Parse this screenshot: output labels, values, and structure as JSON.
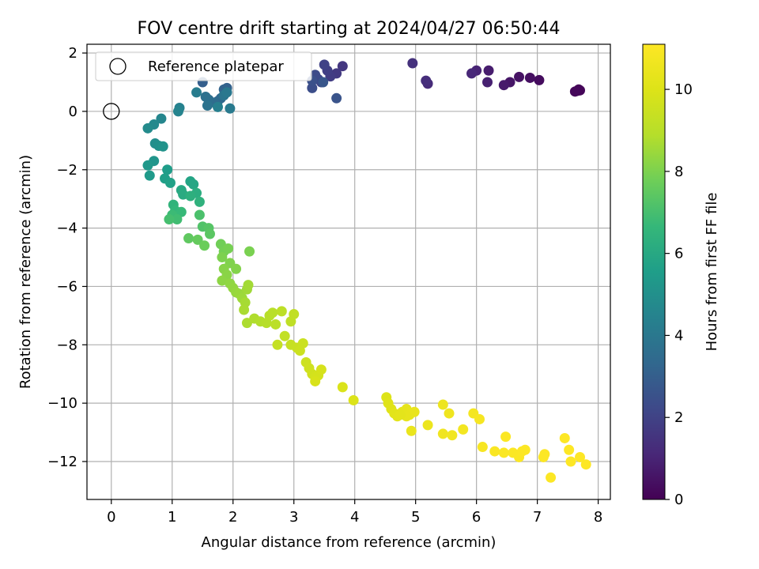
{
  "chart_data": {
    "type": "scatter",
    "title": "FOV centre drift starting at 2024/04/27 06:50:44",
    "xlabel": "Angular distance from reference (arcmin)",
    "ylabel": "Rotation from reference (arcmin)",
    "xlim": [
      -0.4,
      8.2
    ],
    "ylim": [
      -13.3,
      2.3
    ],
    "xticks": [
      0,
      1,
      2,
      3,
      4,
      5,
      6,
      7,
      8
    ],
    "yticks": [
      -12,
      -10,
      -8,
      -6,
      -4,
      -2,
      0,
      2
    ],
    "grid": true,
    "legend": {
      "position": "top-left",
      "entries": [
        "Reference platepar"
      ]
    },
    "reference_point": {
      "x": 0,
      "y": 0
    },
    "colorbar": {
      "label": "Hours from first FF file",
      "range": [
        0,
        11.1
      ],
      "ticks": [
        0,
        2,
        4,
        6,
        8,
        10
      ],
      "colormap": "viridis"
    },
    "points": [
      [
        7.65,
        0.7,
        0.05
      ],
      [
        7.68,
        0.75,
        0.1
      ],
      [
        7.7,
        0.72,
        0.15
      ],
      [
        7.62,
        0.68,
        0.2
      ],
      [
        7.03,
        1.07,
        0.3
      ],
      [
        6.88,
        1.15,
        0.4
      ],
      [
        6.7,
        1.18,
        0.5
      ],
      [
        6.55,
        1.0,
        0.6
      ],
      [
        6.45,
        0.9,
        0.7
      ],
      [
        6.2,
        1.4,
        0.8
      ],
      [
        6.18,
        1.0,
        0.9
      ],
      [
        6.0,
        1.4,
        1.0
      ],
      [
        5.92,
        1.3,
        1.1
      ],
      [
        5.2,
        0.95,
        1.2
      ],
      [
        5.17,
        1.05,
        1.3
      ],
      [
        4.95,
        1.65,
        1.4
      ],
      [
        3.8,
        1.55,
        1.6
      ],
      [
        3.7,
        1.3,
        1.7
      ],
      [
        3.6,
        1.2,
        1.8
      ],
      [
        3.55,
        1.4,
        1.9
      ],
      [
        3.5,
        1.6,
        2.0
      ],
      [
        3.45,
        1.0,
        2.1
      ],
      [
        3.4,
        1.1,
        2.2
      ],
      [
        3.35,
        1.25,
        2.3
      ],
      [
        3.3,
        0.8,
        2.4
      ],
      [
        3.3,
        1.05,
        2.5
      ],
      [
        3.7,
        0.45,
        2.6
      ],
      [
        3.48,
        1.0,
        2.7
      ],
      [
        1.5,
        1.0,
        3.0
      ],
      [
        1.9,
        0.8,
        3.1
      ],
      [
        1.85,
        0.75,
        3.2
      ],
      [
        1.8,
        0.45,
        3.3
      ],
      [
        1.75,
        0.35,
        3.4
      ],
      [
        1.7,
        0.3,
        3.5
      ],
      [
        1.6,
        0.4,
        3.6
      ],
      [
        1.55,
        0.5,
        3.7
      ],
      [
        1.58,
        0.2,
        3.8
      ],
      [
        1.85,
        0.55,
        3.9
      ],
      [
        1.9,
        0.65,
        4.0
      ],
      [
        1.95,
        0.1,
        4.1
      ],
      [
        1.4,
        0.65,
        4.2
      ],
      [
        1.75,
        0.15,
        4.3
      ],
      [
        1.12,
        0.12,
        4.4
      ],
      [
        1.1,
        0.0,
        4.5
      ],
      [
        0.82,
        -0.25,
        4.6
      ],
      [
        0.7,
        -0.45,
        4.7
      ],
      [
        0.6,
        -0.58,
        4.8
      ],
      [
        0.72,
        -1.1,
        4.9
      ],
      [
        0.78,
        -1.18,
        5.0
      ],
      [
        0.85,
        -1.2,
        5.1
      ],
      [
        0.7,
        -1.7,
        5.2
      ],
      [
        0.6,
        -1.85,
        5.3
      ],
      [
        0.63,
        -2.2,
        5.4
      ],
      [
        0.92,
        -2.0,
        5.5
      ],
      [
        0.88,
        -2.3,
        5.6
      ],
      [
        0.97,
        -2.45,
        5.7
      ],
      [
        1.3,
        -2.4,
        5.8
      ],
      [
        1.35,
        -2.5,
        5.9
      ],
      [
        1.15,
        -2.7,
        6.0
      ],
      [
        1.18,
        -2.85,
        6.1
      ],
      [
        1.4,
        -2.8,
        6.2
      ],
      [
        1.3,
        -2.9,
        6.3
      ],
      [
        1.45,
        -3.1,
        6.4
      ],
      [
        1.02,
        -3.2,
        6.5
      ],
      [
        1.05,
        -3.4,
        6.6
      ],
      [
        1.15,
        -3.45,
        6.7
      ],
      [
        1.0,
        -3.55,
        6.8
      ],
      [
        1.08,
        -3.7,
        6.9
      ],
      [
        0.95,
        -3.7,
        7.0
      ],
      [
        1.45,
        -3.55,
        7.1
      ],
      [
        1.5,
        -3.95,
        7.2
      ],
      [
        1.6,
        -4.0,
        7.3
      ],
      [
        1.62,
        -4.2,
        7.4
      ],
      [
        1.27,
        -4.35,
        7.5
      ],
      [
        1.42,
        -4.4,
        7.6
      ],
      [
        1.53,
        -4.6,
        7.7
      ],
      [
        1.8,
        -4.55,
        7.8
      ],
      [
        1.85,
        -4.8,
        7.85
      ],
      [
        1.92,
        -4.7,
        7.9
      ],
      [
        2.27,
        -4.8,
        7.95
      ],
      [
        1.82,
        -5.0,
        8.0
      ],
      [
        1.95,
        -5.2,
        8.05
      ],
      [
        2.05,
        -5.4,
        8.1
      ],
      [
        1.85,
        -5.4,
        8.15
      ],
      [
        1.9,
        -5.6,
        8.2
      ],
      [
        1.82,
        -5.8,
        8.25
      ],
      [
        1.95,
        -5.9,
        8.3
      ],
      [
        2.0,
        -6.05,
        8.35
      ],
      [
        2.05,
        -6.2,
        8.4
      ],
      [
        2.1,
        -6.25,
        8.45
      ],
      [
        2.15,
        -6.4,
        8.5
      ],
      [
        2.23,
        -6.1,
        8.55
      ],
      [
        2.25,
        -5.95,
        8.6
      ],
      [
        2.2,
        -6.55,
        8.65
      ],
      [
        2.18,
        -6.8,
        8.7
      ],
      [
        2.23,
        -7.25,
        8.75
      ],
      [
        2.35,
        -7.1,
        8.8
      ],
      [
        2.45,
        -7.2,
        8.85
      ],
      [
        2.55,
        -7.25,
        8.9
      ],
      [
        2.6,
        -7.0,
        8.95
      ],
      [
        2.65,
        -6.9,
        9.0
      ],
      [
        2.7,
        -7.3,
        9.05
      ],
      [
        2.8,
        -6.85,
        9.1
      ],
      [
        2.95,
        -7.2,
        9.15
      ],
      [
        3.0,
        -6.95,
        9.2
      ],
      [
        2.85,
        -7.7,
        9.25
      ],
      [
        2.73,
        -8.0,
        9.3
      ],
      [
        2.95,
        -8.0,
        9.35
      ],
      [
        3.05,
        -8.1,
        9.4
      ],
      [
        3.15,
        -7.95,
        9.45
      ],
      [
        3.1,
        -8.2,
        9.5
      ],
      [
        3.2,
        -8.6,
        9.55
      ],
      [
        3.25,
        -8.8,
        9.6
      ],
      [
        3.3,
        -9.0,
        9.65
      ],
      [
        3.35,
        -9.1,
        9.7
      ],
      [
        3.4,
        -9.05,
        9.75
      ],
      [
        3.45,
        -8.85,
        9.8
      ],
      [
        3.35,
        -9.25,
        9.85
      ],
      [
        3.8,
        -9.45,
        9.9
      ],
      [
        3.98,
        -9.9,
        9.95
      ],
      [
        4.52,
        -9.8,
        10.0
      ],
      [
        4.55,
        -10.0,
        10.05
      ],
      [
        4.6,
        -10.2,
        10.1
      ],
      [
        4.65,
        -10.35,
        10.15
      ],
      [
        4.7,
        -10.45,
        10.2
      ],
      [
        4.78,
        -10.3,
        10.25
      ],
      [
        4.85,
        -10.2,
        10.3
      ],
      [
        4.9,
        -10.4,
        10.35
      ],
      [
        4.98,
        -10.3,
        10.4
      ],
      [
        4.93,
        -10.95,
        10.45
      ],
      [
        5.2,
        -10.75,
        10.5
      ],
      [
        5.45,
        -10.05,
        10.55
      ],
      [
        5.55,
        -10.35,
        10.6
      ],
      [
        5.45,
        -11.05,
        10.65
      ],
      [
        5.6,
        -11.1,
        10.7
      ],
      [
        5.78,
        -10.9,
        10.75
      ],
      [
        5.95,
        -10.35,
        10.8
      ],
      [
        6.05,
        -10.55,
        10.85
      ],
      [
        6.1,
        -11.5,
        10.9
      ],
      [
        6.3,
        -11.65,
        10.95
      ],
      [
        6.45,
        -11.7,
        11.0
      ],
      [
        6.48,
        -11.15,
        11.02
      ],
      [
        6.7,
        -11.85,
        11.04
      ],
      [
        6.8,
        -11.6,
        11.06
      ],
      [
        7.12,
        -11.75,
        11.07
      ],
      [
        7.22,
        -12.55,
        11.08
      ],
      [
        7.45,
        -11.2,
        11.09
      ],
      [
        7.52,
        -11.6,
        11.1
      ],
      [
        7.7,
        -11.85,
        11.1
      ],
      [
        7.8,
        -12.1,
        11.1
      ],
      [
        7.55,
        -12.0,
        11.1
      ],
      [
        7.1,
        -11.85,
        11.08
      ],
      [
        6.75,
        -11.65,
        11.05
      ],
      [
        6.6,
        -11.7,
        11.03
      ],
      [
        4.85,
        -10.45,
        10.32
      ],
      [
        4.75,
        -10.4,
        10.22
      ]
    ]
  }
}
